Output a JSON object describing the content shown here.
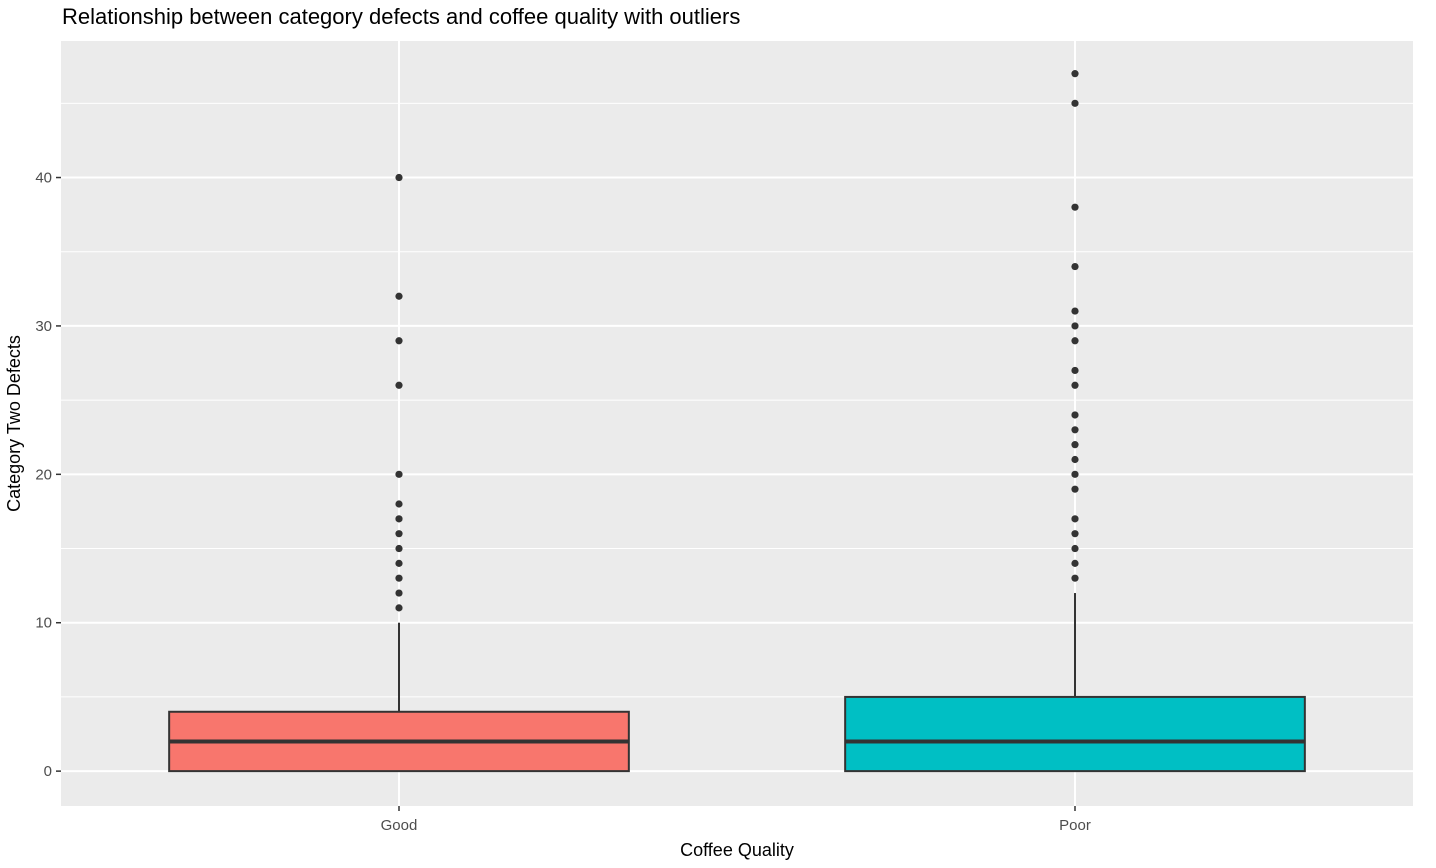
{
  "chart_data": {
    "type": "boxplot",
    "title": "Relationship between category defects and coffee quality with outliers",
    "xlabel": "Coffee Quality",
    "ylabel": "Category Two Defects",
    "categories": [
      "Good",
      "Poor"
    ],
    "y_ticks": [
      0,
      10,
      20,
      30,
      40
    ],
    "ylim": [
      -2.35,
      49.2
    ],
    "grid": true,
    "legend": "none",
    "boxes": [
      {
        "category": "Good",
        "fill": "#F8766D",
        "min": 0,
        "q1": 0,
        "median": 2,
        "q3": 4,
        "whisker_high": 10,
        "outliers": [
          11,
          12,
          13,
          14,
          15,
          16,
          17,
          18,
          20,
          26,
          29,
          32,
          40
        ]
      },
      {
        "category": "Poor",
        "fill": "#00BFC4",
        "min": 0,
        "q1": 0,
        "median": 2,
        "q3": 5,
        "whisker_high": 12,
        "outliers": [
          13,
          14,
          15,
          16,
          17,
          19,
          20,
          21,
          22,
          23,
          24,
          26,
          27,
          29,
          30,
          31,
          34,
          38,
          45,
          47
        ]
      }
    ]
  },
  "colors": {
    "panel_background": "#EBEBEB",
    "grid_major": "#FFFFFF",
    "box_outline": "#333333",
    "outlier_point": "#333333"
  }
}
